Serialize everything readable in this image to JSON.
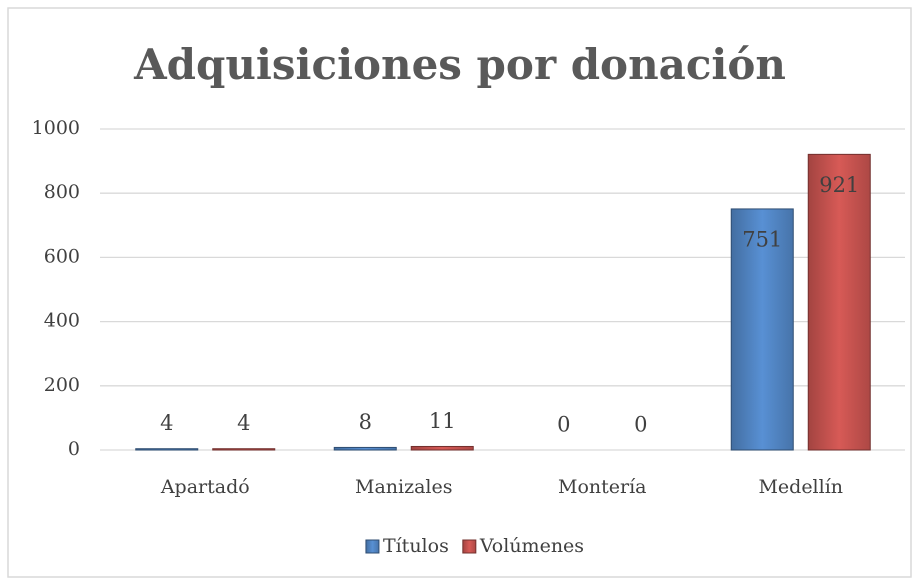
{
  "chart_data": {
    "type": "bar",
    "title": "Adquisiciones por donación",
    "categories": [
      "Apartadó",
      "Manizales",
      "Montería",
      "Medellín"
    ],
    "series": [
      {
        "name": "Títulos",
        "color": "#4f81bd",
        "values": [
          4,
          8,
          0,
          751
        ]
      },
      {
        "name": "Volúmenes",
        "color": "#c0504d",
        "values": [
          4,
          11,
          0,
          921
        ]
      }
    ],
    "ylim": [
      0,
      1000
    ],
    "yticks": [
      0,
      200,
      400,
      600,
      800,
      1000
    ],
    "grid": true,
    "legend": "bottom"
  }
}
